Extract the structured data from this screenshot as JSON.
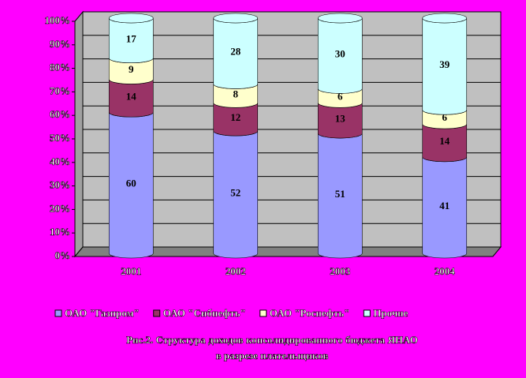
{
  "chart_data": {
    "type": "stacked_bar_100",
    "title": [
      "Рис.2. Структура доходов консолидированного бюджета ЯНАО",
      "в разрезе плательщиков"
    ],
    "categories": [
      "2001",
      "2002",
      "2003",
      "2004"
    ],
    "series": [
      {
        "name": "ОАО \"Газпром\"",
        "color": "#9999ff",
        "values": [
          60,
          52,
          51,
          41
        ]
      },
      {
        "name": "ОАО \"Сибнефть\"",
        "color": "#993366",
        "values": [
          14,
          12,
          13,
          14
        ]
      },
      {
        "name": "ОАО \"Роснефть\"",
        "color": "#ffffcc",
        "values": [
          9,
          8,
          6,
          6
        ]
      },
      {
        "name": "Прочие",
        "color": "#ccffff",
        "values": [
          17,
          28,
          30,
          39
        ]
      }
    ],
    "ylim": [
      0,
      100
    ],
    "yticks": [
      {
        "value": 0,
        "label": "0%"
      },
      {
        "value": 10,
        "label": "10%"
      },
      {
        "value": 20,
        "label": "20%"
      },
      {
        "value": 30,
        "label": "30%"
      },
      {
        "value": 40,
        "label": "40%"
      },
      {
        "value": 50,
        "label": "50%"
      },
      {
        "value": 60,
        "label": "60%"
      },
      {
        "value": 70,
        "label": "70%"
      },
      {
        "value": 80,
        "label": "80%"
      },
      {
        "value": 90,
        "label": "90%"
      },
      {
        "value": 100,
        "label": "100%"
      }
    ],
    "grid": true,
    "background": "#ff00ff",
    "wall_color": "#c0c0c0"
  }
}
